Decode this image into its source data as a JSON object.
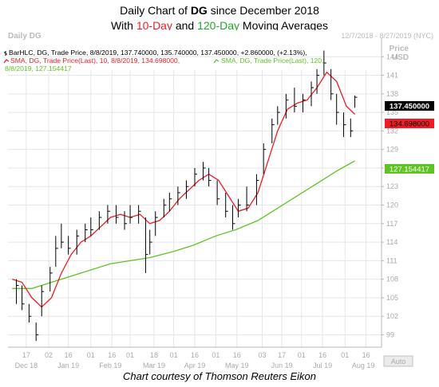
{
  "title": {
    "line1_prefix": "Daily Chart of ",
    "line1_symbol": "DG",
    "line1_suffix": " since December 2018",
    "line2_prefix": "With ",
    "line2_red": "10-Day",
    "line2_mid": " and ",
    "line2_green": "120-Day",
    "line2_suffix": " Moving Averages"
  },
  "credit": "Chart courtesy of Thomson Reuters Eikon",
  "header": {
    "symbol_label": "Daily DG",
    "date_range": "12/7/2018 - 8/27/2019 (NYC)",
    "price_label": "Price",
    "currency": "USD"
  },
  "legend": {
    "bar_line": "BarHLC, DG, Trade Price, 8/8/2019, 137.740000, 135.740000, 137.450000, +2.860000, (+2.13%),",
    "sma10_line": "SMA, DG, Trade Price(Last), 10, 8/8/2019, 134.698000,",
    "sma120_line1": "SMA, DG, Trade Price(Last), 120,",
    "sma120_line2": "8/8/2019, 127.154417"
  },
  "price_tags": {
    "last": "137.450000",
    "sma10": "134.698000",
    "sma120": "127.154417"
  },
  "auto_label": "Auto",
  "chart_data": {
    "type": "line",
    "title": "Daily Chart of DG since December 2018",
    "ylim": [
      97,
      147
    ],
    "y_ticks": [
      "144",
      "141",
      "138",
      "135",
      "132",
      "129",
      "126",
      "123",
      "120",
      "117",
      "114",
      "111",
      "108",
      "105",
      "102",
      "99"
    ],
    "day_ticks": [
      "17",
      "02",
      "16",
      "01",
      "16",
      "01",
      "18",
      "01",
      "16",
      "01",
      "16",
      "03",
      "17",
      "01",
      "16",
      "01",
      "16"
    ],
    "month_labels": [
      "Dec 18",
      "Jan 19",
      "Feb 19",
      "Mar 19",
      "Apr 19",
      "May 19",
      "Jun 19",
      "Jul 19",
      "Aug 19"
    ],
    "grid": true,
    "colors": {
      "price": "#000000",
      "sma10": "#ee1c25",
      "sma120": "#5ec424",
      "last_tag": "#000000",
      "sma10_tag": "#ee1c25",
      "sma120_tag": "#5ec424"
    },
    "series": [
      {
        "name": "BarHLC, DG, Trade Price",
        "values": [
          [
            "12/10/2018",
            108,
            104,
            107
          ],
          [
            "12/14/2018",
            107,
            103,
            104
          ],
          [
            "12/19/2018",
            104,
            101,
            102
          ],
          [
            "12/24/2018",
            101,
            98,
            99
          ],
          [
            "12/28/2018",
            107,
            102,
            106
          ],
          [
            "1/3/2019",
            110,
            106,
            109
          ],
          [
            "1/7/2019",
            115,
            110,
            113
          ],
          [
            "1/11/2019",
            117,
            113,
            114
          ],
          [
            "1/16/2019",
            115,
            112,
            113
          ],
          [
            "1/22/2019",
            116,
            112,
            115
          ],
          [
            "1/28/2019",
            117,
            114,
            116
          ],
          [
            "2/1/2019",
            118,
            115,
            116
          ],
          [
            "2/7/2019",
            119,
            116,
            118
          ],
          [
            "2/13/2019",
            120,
            117,
            119
          ],
          [
            "2/19/2019",
            120,
            117,
            118
          ],
          [
            "2/25/2019",
            119,
            116,
            117
          ],
          [
            "3/1/2019",
            120,
            117,
            118
          ],
          [
            "3/7/2019",
            120,
            117,
            119
          ],
          [
            "3/12/2019",
            118,
            109,
            112
          ],
          [
            "3/15/2019",
            116,
            112,
            114
          ],
          [
            "3/19/2019",
            119,
            115,
            118
          ],
          [
            "3/25/2019",
            121,
            118,
            120
          ],
          [
            "3/29/2019",
            122,
            119,
            121
          ],
          [
            "4/4/2019",
            123,
            120,
            122
          ],
          [
            "4/10/2019",
            124,
            121,
            123
          ],
          [
            "4/16/2019",
            126,
            123,
            125
          ],
          [
            "4/22/2019",
            127,
            124,
            126
          ],
          [
            "4/26/2019",
            126,
            123,
            124
          ],
          [
            "5/2/2019",
            124,
            120,
            121
          ],
          [
            "5/8/2019",
            122,
            118,
            119
          ],
          [
            "5/13/2019",
            120,
            116,
            117
          ],
          [
            "5/17/2019",
            121,
            118,
            120
          ],
          [
            "5/23/2019",
            123,
            119,
            120
          ],
          [
            "5/30/2019",
            125,
            120,
            124
          ],
          [
            "6/4/2019",
            130,
            125,
            129
          ],
          [
            "6/10/2019",
            134,
            130,
            133
          ],
          [
            "6/14/2019",
            136,
            133,
            135
          ],
          [
            "6/20/2019",
            138,
            134,
            137
          ],
          [
            "6/26/2019",
            139,
            135,
            136
          ],
          [
            "7/2/2019",
            138,
            135,
            137
          ],
          [
            "7/8/2019",
            140,
            136,
            139
          ],
          [
            "7/12/2019",
            142,
            138,
            141
          ],
          [
            "7/17/2019",
            145,
            141,
            143
          ],
          [
            "7/22/2019",
            142,
            137,
            138
          ],
          [
            "7/26/2019",
            138,
            133,
            135
          ],
          [
            "7/31/2019",
            135,
            131,
            133
          ],
          [
            "8/5/2019",
            134,
            131,
            132
          ],
          [
            "8/8/2019",
            137.74,
            135.74,
            137.45
          ]
        ]
      },
      {
        "name": "SMA, DG, Trade Price(Last), 10",
        "values": [
          [
            "12/7/2018",
            108
          ],
          [
            "12/14/2018",
            107.5
          ],
          [
            "12/21/2018",
            105
          ],
          [
            "12/28/2018",
            103.5
          ],
          [
            "1/4/2019",
            105
          ],
          [
            "1/11/2019",
            109
          ],
          [
            "1/18/2019",
            112
          ],
          [
            "1/25/2019",
            114
          ],
          [
            "2/1/2019",
            115
          ],
          [
            "2/8/2019",
            116.5
          ],
          [
            "2/15/2019",
            118
          ],
          [
            "2/22/2019",
            118.5
          ],
          [
            "3/1/2019",
            118
          ],
          [
            "3/8/2019",
            118.5
          ],
          [
            "3/15/2019",
            117
          ],
          [
            "3/22/2019",
            117.5
          ],
          [
            "3/29/2019",
            119
          ],
          [
            "4/5/2019",
            121
          ],
          [
            "4/12/2019",
            122.5
          ],
          [
            "4/19/2019",
            124
          ],
          [
            "4/26/2019",
            125
          ],
          [
            "5/3/2019",
            124
          ],
          [
            "5/10/2019",
            121.5
          ],
          [
            "5/17/2019",
            119
          ],
          [
            "5/24/2019",
            119.5
          ],
          [
            "5/31/2019",
            122
          ],
          [
            "6/7/2019",
            127
          ],
          [
            "6/14/2019",
            132
          ],
          [
            "6/21/2019",
            135.5
          ],
          [
            "6/28/2019",
            136.5
          ],
          [
            "7/5/2019",
            137
          ],
          [
            "7/12/2019",
            139
          ],
          [
            "7/19/2019",
            141.5
          ],
          [
            "7/26/2019",
            140
          ],
          [
            "8/2/2019",
            136
          ],
          [
            "8/8/2019",
            134.698
          ]
        ]
      },
      {
        "name": "SMA, DG, Trade Price(Last), 120",
        "values": [
          [
            "12/7/2018",
            106.5
          ],
          [
            "12/21/2018",
            106.5
          ],
          [
            "1/4/2019",
            107.5
          ],
          [
            "1/18/2019",
            108.5
          ],
          [
            "2/1/2019",
            109.5
          ],
          [
            "2/15/2019",
            110.5
          ],
          [
            "3/1/2019",
            111
          ],
          [
            "3/15/2019",
            111.5
          ],
          [
            "4/1/2019",
            112.5
          ],
          [
            "4/15/2019",
            113.5
          ],
          [
            "5/1/2019",
            115
          ],
          [
            "5/15/2019",
            116
          ],
          [
            "5/31/2019",
            117.5
          ],
          [
            "6/14/2019",
            119.5
          ],
          [
            "6/28/2019",
            121.5
          ],
          [
            "7/12/2019",
            123.5
          ],
          [
            "7/26/2019",
            125.5
          ],
          [
            "8/8/2019",
            127.154417
          ]
        ]
      }
    ]
  }
}
